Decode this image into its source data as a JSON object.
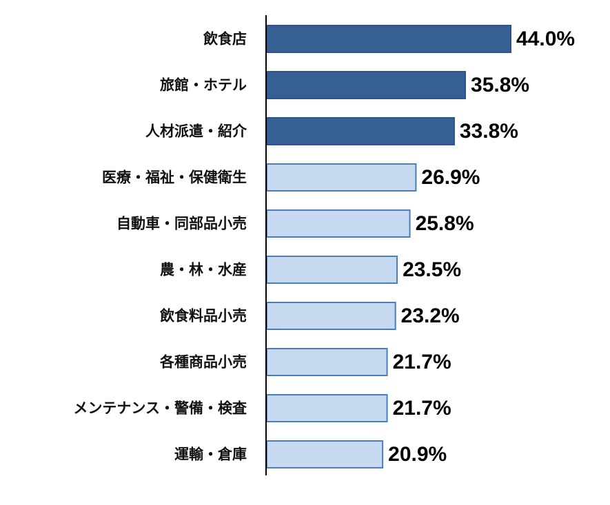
{
  "chart_data": {
    "type": "bar",
    "orientation": "horizontal",
    "title": "",
    "xlabel": "",
    "ylabel": "",
    "xlim": [
      0,
      44
    ],
    "grid": false,
    "categories": [
      "飲食店",
      "旅館・ホテル",
      "人材派遣・紹介",
      "医療・福祉・保健衛生",
      "自動車・同部品小売",
      "農・林・水産",
      "飲食料品小売",
      "各種商品小売",
      "メンテナンス・警備・検査",
      "運輸・倉庫"
    ],
    "values": [
      44.0,
      35.8,
      33.8,
      26.9,
      25.8,
      23.5,
      23.2,
      21.7,
      21.7,
      20.9
    ],
    "value_labels": [
      "44.0%",
      "35.8%",
      "33.8%",
      "26.9%",
      "25.8%",
      "23.5%",
      "23.2%",
      "21.7%",
      "21.7%",
      "20.9%"
    ],
    "highlight": [
      true,
      true,
      true,
      false,
      false,
      false,
      false,
      false,
      false,
      false
    ],
    "colors": {
      "highlight_fill": "#376092",
      "highlight_stroke": "#2f528f",
      "normal_fill": "#c6d9f1",
      "normal_stroke": "#4a7ebb",
      "axis": "#000000"
    }
  }
}
